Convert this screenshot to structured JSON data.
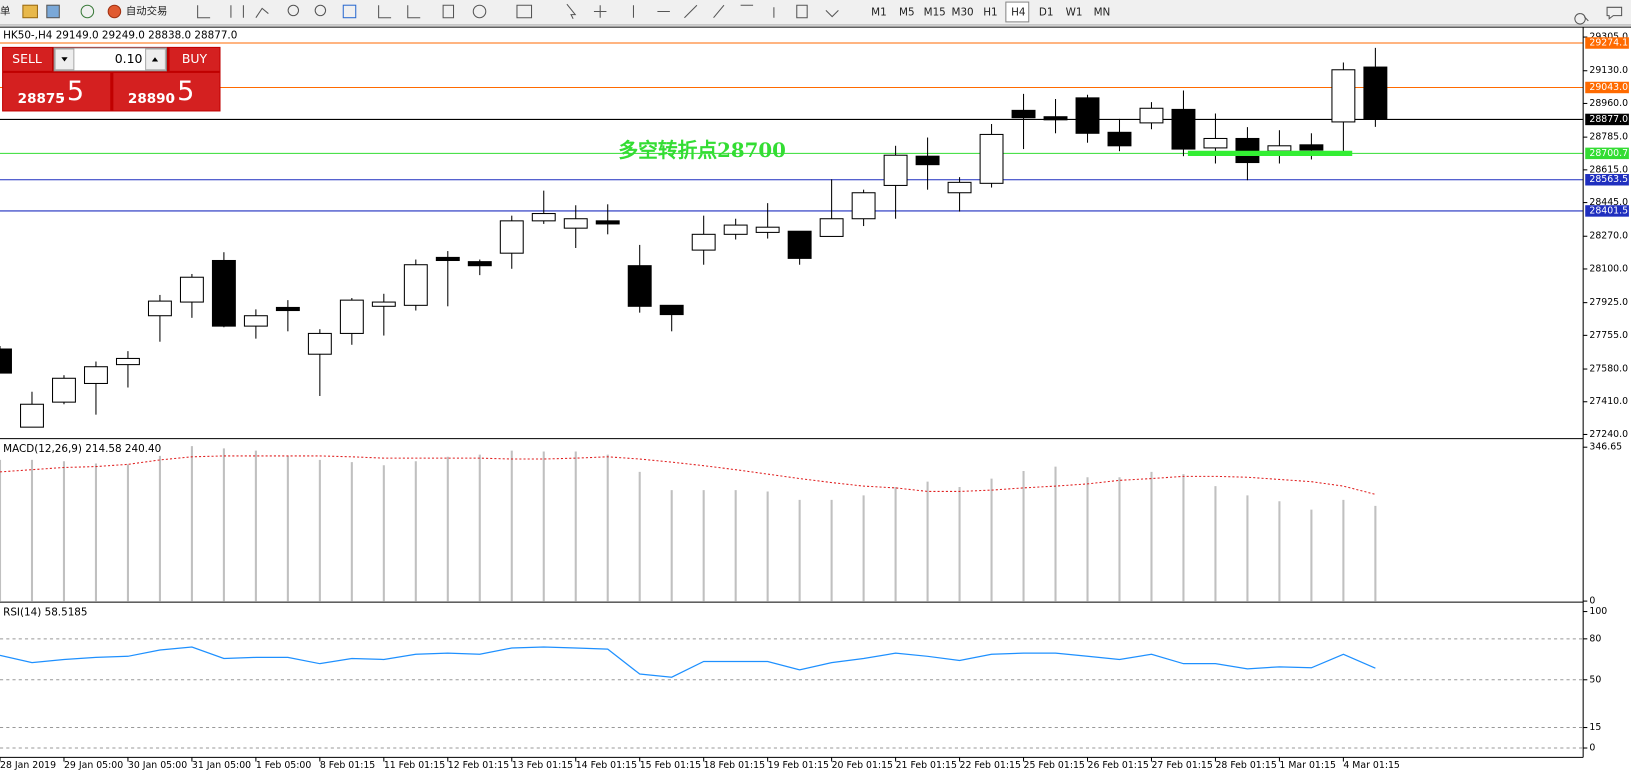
{
  "toolbar": {
    "menu_fragment": "单",
    "auto_trading": "自动交易",
    "timeframes": [
      "M1",
      "M5",
      "M15",
      "M30",
      "H1",
      "H4",
      "D1",
      "W1",
      "MN"
    ]
  },
  "symbol_header": "HK50-,H4  29149.0 29249.0 28838.0 28877.0",
  "trade_panel": {
    "sell": "SELL",
    "buy": "BUY",
    "lot": "0.10",
    "sell_price": "28875",
    "sell_fraction": ".5",
    "buy_price": "28890",
    "buy_fraction": ".5"
  },
  "chart_data": [
    {
      "type": "candlestick",
      "categories": [
        "28 Jan 2019",
        null,
        "29 Jan 05:00",
        null,
        "30 Jan 05:00",
        null,
        "31 Jan 05:00",
        null,
        "1 Feb 05:00",
        null,
        "8 Feb 01:15",
        null,
        "11 Feb 01:15",
        null,
        "12 Feb 01:15",
        null,
        "13 Feb 01:15",
        null,
        "14 Feb 01:15",
        null,
        "15 Feb 01:15",
        null,
        "18 Feb 01:15",
        null,
        "19 Feb 01:15",
        null,
        "20 Feb 01:15",
        null,
        "21 Feb 01:15",
        null,
        "22 Feb 01:15",
        null,
        "25 Feb 01:15",
        null,
        "26 Feb 01:15",
        null,
        "27 Feb 01:15",
        null,
        "28 Feb 01:15",
        null,
        "1 Mar 01:15",
        null,
        "4 Mar 01:15",
        null
      ],
      "open": [
        27684,
        27278,
        27408,
        27505,
        27603,
        27857,
        27928,
        28144,
        27803,
        27900,
        27657,
        27765,
        27906,
        27911,
        28160,
        28138,
        28182,
        28350,
        28312,
        28350,
        28117,
        27911,
        28198,
        28280,
        28290,
        28296,
        28269,
        28361,
        28534,
        28686,
        28496,
        28545,
        28924,
        28891,
        28989,
        28810,
        28859,
        28929,
        28729,
        28778,
        28713,
        28745,
        28864,
        29149
      ],
      "high": [
        27700,
        27462,
        27548,
        27619,
        27673,
        27965,
        28074,
        28187,
        27890,
        27938,
        27787,
        27949,
        27971,
        28149,
        28193,
        28149,
        28377,
        28507,
        28431,
        28436,
        28225,
        27911,
        28377,
        28361,
        28442,
        28296,
        28566,
        28512,
        28740,
        28783,
        28577,
        28853,
        29010,
        28983,
        29005,
        28880,
        28967,
        29027,
        28908,
        28837,
        28821,
        28805,
        29173,
        29249
      ],
      "low": [
        27559,
        27278,
        27397,
        27343,
        27484,
        27722,
        27846,
        27797,
        27738,
        27776,
        27440,
        27706,
        27754,
        27884,
        27906,
        28068,
        28101,
        28334,
        28209,
        28280,
        27873,
        27776,
        28122,
        28253,
        28258,
        28122,
        28269,
        28323,
        28361,
        28512,
        28398,
        28523,
        28723,
        28805,
        28756,
        28712,
        28826,
        28686,
        28648,
        28561,
        28648,
        28669,
        28713,
        28838
      ],
      "close": [
        27559,
        27397,
        27532,
        27592,
        27635,
        27933,
        28057,
        27803,
        27857,
        27884,
        27765,
        27938,
        27928,
        28122,
        28144,
        28117,
        28350,
        28388,
        28361,
        28334,
        27906,
        27863,
        28280,
        28328,
        28317,
        28155,
        28361,
        28496,
        28691,
        28642,
        28550,
        28799,
        28886,
        28875,
        28805,
        28740,
        28935,
        28723,
        28778,
        28653,
        28740,
        28718,
        29135,
        28877
      ],
      "up_color": "#ffffff",
      "down_color": "#000000",
      "ylim": [
        27224,
        29346
      ],
      "yticks": [
        {
          "value": 27240,
          "label": "27240.0"
        },
        {
          "value": 27410,
          "label": "27410.0"
        },
        {
          "value": 27580,
          "label": "27580.0"
        },
        {
          "value": 27755,
          "label": "27755.0"
        },
        {
          "value": 27925,
          "label": "27925.0"
        },
        {
          "value": 28100,
          "label": "28100.0"
        },
        {
          "value": 28270,
          "label": "28270.0"
        },
        {
          "value": 28445,
          "label": "28445.0"
        },
        {
          "value": 28615,
          "label": "28615.0"
        },
        {
          "value": 28785,
          "label": "28785.0"
        },
        {
          "value": 28960,
          "label": "28960.0"
        },
        {
          "value": 29130,
          "label": "29130.0"
        },
        {
          "value": 29305,
          "label": "29305.0"
        }
      ],
      "levels": [
        {
          "value": 29274.1,
          "label": "29274.1",
          "color": "#ff6a00"
        },
        {
          "value": 29043,
          "label": "29043.0",
          "color": "#ff6a00"
        },
        {
          "value": 28877,
          "label": "28877.0",
          "color": "#000000"
        },
        {
          "value": 28700.7,
          "label": "28700.7",
          "color": "#33dd33"
        },
        {
          "value": 28563.5,
          "label": "28563.5",
          "color": "#1f2fbf"
        },
        {
          "value": 28401.5,
          "label": "28401.5",
          "color": "#1f2fbf"
        }
      ],
      "annotation": "多空转折点28700"
    },
    {
      "type": "bar",
      "title": "MACD(12,26,9) 214.58 240.40",
      "values": [
        318,
        318,
        315,
        310,
        308,
        327,
        349,
        344,
        339,
        327,
        318,
        313,
        306,
        315,
        325,
        330,
        339,
        337,
        337,
        330,
        291,
        250,
        250,
        250,
        247,
        228,
        228,
        238,
        257,
        269,
        257,
        276,
        293,
        303,
        279,
        279,
        291,
        286,
        259,
        238,
        225,
        206,
        228,
        214.58
      ],
      "signal": [
        291,
        296,
        301,
        303,
        308,
        318,
        325,
        327,
        327,
        327,
        327,
        325,
        322,
        322,
        322,
        322,
        320,
        320,
        322,
        325,
        320,
        313,
        305,
        296,
        286,
        276,
        267,
        259,
        255,
        247,
        247,
        250,
        255,
        259,
        264,
        272,
        276,
        281,
        281,
        279,
        274,
        269,
        259,
        240.4
      ],
      "color": "#c0c0c0",
      "signal_color": "#e02020",
      "ylim": [
        0,
        359
      ],
      "yticks": [
        0,
        346.65
      ]
    },
    {
      "type": "line",
      "title": "RSI(14) 58.5185",
      "values": [
        67.9,
        62.6,
        64.9,
        66.4,
        67.2,
        71.8,
        74.0,
        65.6,
        66.4,
        66.4,
        61.8,
        65.6,
        64.9,
        68.7,
        69.5,
        68.7,
        73.3,
        74.0,
        73.3,
        72.5,
        54.2,
        51.9,
        63.4,
        63.4,
        63.4,
        57.3,
        62.6,
        65.6,
        69.5,
        67.2,
        64.1,
        68.7,
        69.5,
        69.5,
        67.2,
        64.9,
        68.7,
        61.8,
        61.8,
        58.0,
        59.5,
        58.8,
        68.7,
        58.5185
      ],
      "color": "#1e90ff",
      "ylim": [
        -6.1,
        104.6
      ],
      "yticks": [
        0,
        15,
        50,
        80,
        100
      ]
    }
  ]
}
